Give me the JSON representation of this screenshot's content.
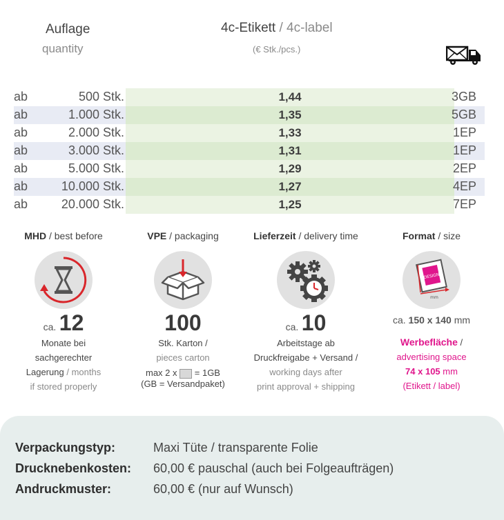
{
  "header": {
    "quantity_de": "Auflage",
    "quantity_en": "quantity",
    "label_de": "4c-Etikett",
    "label_sep": " / ",
    "label_en": "4c-label",
    "unit": "(€ Stk./pcs.)",
    "truck_icon": "shipping-truck-icon"
  },
  "rows": [
    {
      "ab": "ab",
      "qty": "500 Stk.",
      "price": "1,44",
      "ship": "3GB"
    },
    {
      "ab": "ab",
      "qty": "1.000 Stk.",
      "price": "1,35",
      "ship": "5GB"
    },
    {
      "ab": "ab",
      "qty": "2.000 Stk.",
      "price": "1,33",
      "ship": "1EP"
    },
    {
      "ab": "ab",
      "qty": "3.000 Stk.",
      "price": "1,31",
      "ship": "1EP"
    },
    {
      "ab": "ab",
      "qty": "5.000 Stk.",
      "price": "1,29",
      "ship": "2EP"
    },
    {
      "ab": "ab",
      "qty": "10.000 Stk.",
      "price": "1,27",
      "ship": "4EP"
    },
    {
      "ab": "ab",
      "qty": "20.000 Stk.",
      "price": "1,25",
      "ship": "7EP"
    }
  ],
  "info": {
    "mhd": {
      "title_de": "MHD",
      "title_en": "best before",
      "ca": "ca.",
      "number": "12",
      "line1": "Monate bei",
      "line2": "sachgerechter",
      "line3_de": "Lagerung",
      "line3_en": "months",
      "line4": "if stored properly",
      "icon": "hourglass-icon"
    },
    "vpe": {
      "title_de": "VPE",
      "title_en": "packaging",
      "number": "100",
      "line1": "Stk. Karton /",
      "line2": "pieces carton",
      "line3a": "max 2 x",
      "line3b": "= 1GB",
      "line4": "(GB = Versandpaket)",
      "icon": "box-icon"
    },
    "delivery": {
      "title_de": "Lieferzeit",
      "title_en": "delivery time",
      "ca": "ca.",
      "number": "10",
      "line1": "Arbeitstage ab",
      "line2": "Druckfreigabe + Versand /",
      "line3": "working days after",
      "line4": "print approval + shipping",
      "icon": "gears-clock-icon"
    },
    "format": {
      "title_de": "Format",
      "title_en": "size",
      "size_prefix": "ca.",
      "size": "150 x 140",
      "size_unit": "mm",
      "icon_label": "DESIGN",
      "icon_unit": "mm",
      "line1_de": "Werbefläche",
      "line1_sep": " /",
      "line2": "advertising space",
      "line3": "74 x 105",
      "line3_unit": "mm",
      "line4": "(Etikett / label)",
      "icon": "label-format-icon"
    }
  },
  "details": [
    {
      "key": "Verpackungstyp:",
      "value": "Maxi Tüte / transparente Folie"
    },
    {
      "key": "Drucknebenkosten:",
      "value": "60,00 € pauschal (auch bei Folgeaufträgen)"
    },
    {
      "key": "Andruckmuster:",
      "value": "60,00 € (nur auf Wunsch)"
    }
  ],
  "colors": {
    "accent": "#e0168c",
    "row_alt": "#e8ebf4",
    "price_bg": "#ebf3e3",
    "box_bg": "#e7eeed",
    "icon_red": "#d9262b"
  }
}
